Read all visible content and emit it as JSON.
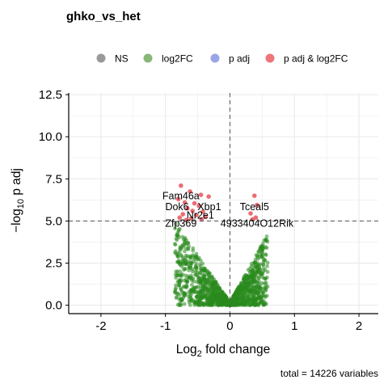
{
  "chart_data": {
    "type": "scatter",
    "title": "ghko_vs_het",
    "caption": "total = 14226 variables",
    "xlabel_prefix": "Log",
    "xlabel_sub": "2",
    "xlabel_suffix": " fold change",
    "ylabel_prefix": "−log",
    "ylabel_sub": "10",
    "ylabel_suffix": " p adj",
    "xlim": [
      -2.5,
      2.3
    ],
    "ylim": [
      -0.5,
      12.6
    ],
    "xticks": [
      -2,
      -1,
      0,
      1,
      2
    ],
    "xtick_labels": [
      "-2",
      "-1",
      "0",
      "1",
      "2"
    ],
    "yticks": [
      0,
      2.5,
      5,
      7.5,
      10,
      12.5
    ],
    "ytick_labels": [
      "0.0",
      "2.5",
      "5.0",
      "7.5",
      "10.0",
      "12.5"
    ],
    "grid": true,
    "legend_position": "top",
    "thresholds": {
      "x": 0,
      "y": 5.0
    },
    "legend": [
      {
        "name": "NS",
        "color": "#808080"
      },
      {
        "name": "log2FC",
        "color": "#6aa555"
      },
      {
        "name": "p adj",
        "color": "#7f8fe0"
      },
      {
        "name": "p adj & log2FC",
        "color": "#e8545a"
      }
    ],
    "series": [
      {
        "name": "p adj & log2FC",
        "color": "#e8545a",
        "points": [
          {
            "x": -0.76,
            "y": 7.1
          },
          {
            "x": -0.62,
            "y": 6.75
          },
          {
            "x": -0.45,
            "y": 6.55
          },
          {
            "x": -0.33,
            "y": 6.45
          },
          {
            "x": -0.8,
            "y": 6.3
          },
          {
            "x": -0.7,
            "y": 6.1
          },
          {
            "x": -0.55,
            "y": 6.05
          },
          {
            "x": -0.48,
            "y": 5.9
          },
          {
            "x": -0.66,
            "y": 5.75
          },
          {
            "x": -0.58,
            "y": 5.6
          },
          {
            "x": -0.42,
            "y": 5.55
          },
          {
            "x": -0.73,
            "y": 5.4
          },
          {
            "x": -0.52,
            "y": 5.35
          },
          {
            "x": -0.38,
            "y": 5.25
          },
          {
            "x": -0.78,
            "y": 5.2
          },
          {
            "x": -0.6,
            "y": 5.15
          },
          {
            "x": -0.44,
            "y": 5.1
          },
          {
            "x": -0.68,
            "y": 5.05
          },
          {
            "x": 0.38,
            "y": 6.5
          },
          {
            "x": 0.42,
            "y": 5.95
          },
          {
            "x": 0.32,
            "y": 5.45
          },
          {
            "x": 0.4,
            "y": 5.2
          },
          {
            "x": 0.35,
            "y": 5.1
          }
        ]
      }
    ],
    "labels": [
      {
        "text": "Fam46a",
        "x": -0.76,
        "y": 6.3,
        "anchor": "middle"
      },
      {
        "text": "Dok6",
        "x": -0.82,
        "y": 5.65,
        "anchor": "middle"
      },
      {
        "text": "Xbp1",
        "x": -0.32,
        "y": 5.65,
        "anchor": "middle"
      },
      {
        "text": "Nr2e1",
        "x": -0.46,
        "y": 5.15,
        "anchor": "middle"
      },
      {
        "text": "Zfp369",
        "x": -0.76,
        "y": 4.65,
        "anchor": "middle"
      },
      {
        "text": "Tceal5",
        "x": 0.38,
        "y": 5.65,
        "anchor": "middle"
      },
      {
        "text": "4933404O12Rik",
        "x": 0.42,
        "y": 4.65,
        "anchor": "middle"
      }
    ]
  }
}
